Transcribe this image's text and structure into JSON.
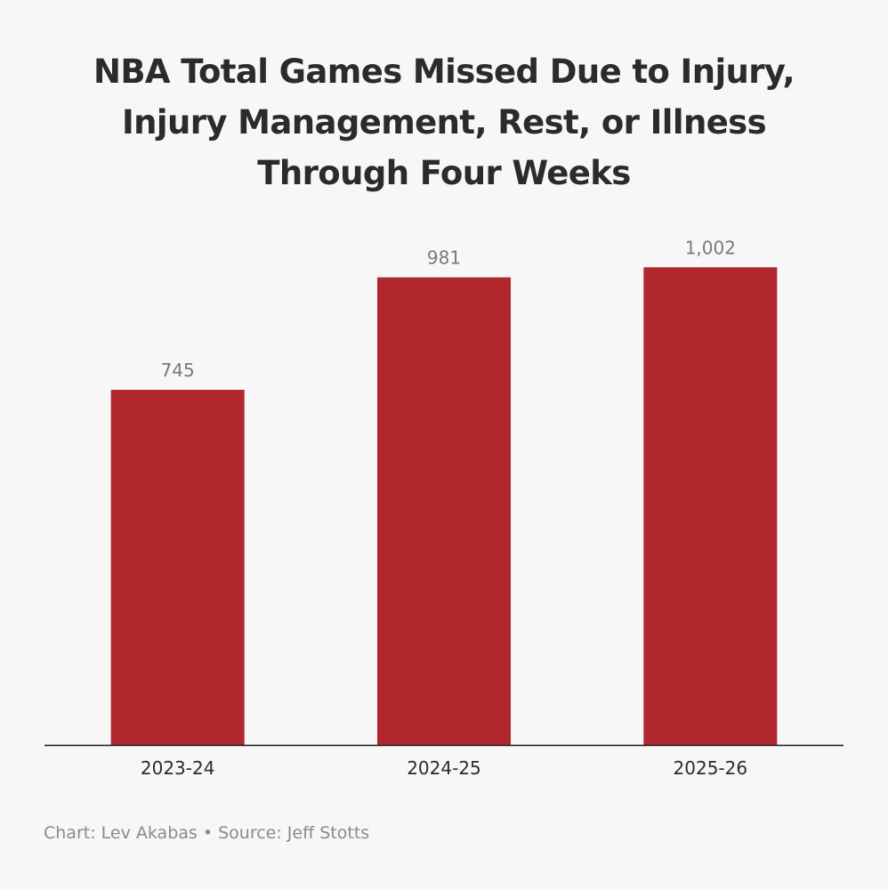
{
  "chart_data": {
    "type": "bar",
    "title_lines": [
      "NBA Total Games Missed Due to Injury,",
      "Injury Management, Rest, or Illness",
      "Through Four Weeks"
    ],
    "categories": [
      "2023-24",
      "2024-25",
      "2025-26"
    ],
    "values": [
      745,
      981,
      1002
    ],
    "value_labels": [
      "745",
      "981",
      "1,002"
    ],
    "ylim": [
      0,
      1040
    ],
    "grid": false,
    "bar_color": "#b0282e",
    "axis_color": "#1a1a1a",
    "value_label_color": "#7a7a7a",
    "tick_label_color": "#2b2b2b"
  },
  "footer": {
    "credit": "Chart: Lev Akabas",
    "separator": "•",
    "source": "Source: Jeff Stotts"
  }
}
